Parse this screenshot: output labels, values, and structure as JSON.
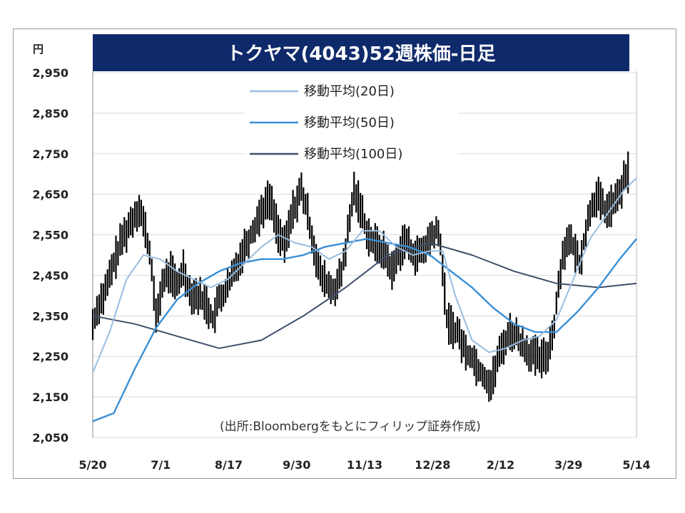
{
  "chart_data": {
    "type": "line",
    "title": "トクヤマ(4043)52週株価-日足",
    "unit_label": "円",
    "source": "(出所:Bloombergをもとにフィリップ証券作成)",
    "ylim": [
      2050,
      2950
    ],
    "y_ticks": [
      "2,950",
      "2,850",
      "2,750",
      "2,650",
      "2,550",
      "2,450",
      "2,350",
      "2,250",
      "2,150",
      "2,050"
    ],
    "y_tick_values": [
      2950,
      2850,
      2750,
      2650,
      2550,
      2450,
      2350,
      2250,
      2150,
      2050
    ],
    "x_tick_labels": [
      "5/20",
      "7/1",
      "8/17",
      "9/30",
      "11/13",
      "12/28",
      "2/12",
      "3/29",
      "5/14"
    ],
    "grid": true,
    "legend_position": "top-center",
    "colors": {
      "title_bar": "#0f2a6b",
      "price": "#000000",
      "ma20": "#9bbde0",
      "ma50": "#3a8fd6",
      "ma100": "#3f4f6b",
      "grid": "#d9d9d9"
    },
    "x_range": [
      0,
      258
    ],
    "price_range_points": [
      [
        0,
        2330
      ],
      [
        3,
        2380
      ],
      [
        6,
        2410
      ],
      [
        10,
        2480
      ],
      [
        14,
        2540
      ],
      [
        18,
        2580
      ],
      [
        22,
        2620
      ],
      [
        25,
        2560
      ],
      [
        28,
        2470
      ],
      [
        30,
        2340
      ],
      [
        33,
        2430
      ],
      [
        37,
        2460
      ],
      [
        40,
        2420
      ],
      [
        43,
        2470
      ],
      [
        46,
        2410
      ],
      [
        50,
        2400
      ],
      [
        54,
        2380
      ],
      [
        57,
        2340
      ],
      [
        60,
        2390
      ],
      [
        64,
        2420
      ],
      [
        68,
        2470
      ],
      [
        72,
        2520
      ],
      [
        76,
        2560
      ],
      [
        80,
        2610
      ],
      [
        84,
        2640
      ],
      [
        88,
        2560
      ],
      [
        91,
        2520
      ],
      [
        95,
        2610
      ],
      [
        99,
        2660
      ],
      [
        102,
        2600
      ],
      [
        105,
        2520
      ],
      [
        108,
        2450
      ],
      [
        111,
        2430
      ],
      [
        114,
        2410
      ],
      [
        118,
        2450
      ],
      [
        121,
        2550
      ],
      [
        124,
        2660
      ],
      [
        127,
        2620
      ],
      [
        130,
        2560
      ],
      [
        133,
        2530
      ],
      [
        136,
        2520
      ],
      [
        139,
        2500
      ],
      [
        142,
        2460
      ],
      [
        145,
        2500
      ],
      [
        148,
        2540
      ],
      [
        151,
        2510
      ],
      [
        154,
        2500
      ],
      [
        157,
        2510
      ],
      [
        160,
        2540
      ],
      [
        163,
        2560
      ],
      [
        165,
        2530
      ],
      [
        168,
        2340
      ],
      [
        171,
        2320
      ],
      [
        174,
        2300
      ],
      [
        177,
        2260
      ],
      [
        180,
        2250
      ],
      [
        183,
        2220
      ],
      [
        186,
        2200
      ],
      [
        189,
        2180
      ],
      [
        192,
        2240
      ],
      [
        195,
        2280
      ],
      [
        198,
        2310
      ],
      [
        201,
        2300
      ],
      [
        204,
        2280
      ],
      [
        207,
        2260
      ],
      [
        210,
        2250
      ],
      [
        213,
        2240
      ],
      [
        216,
        2260
      ],
      [
        219,
        2330
      ],
      [
        222,
        2470
      ],
      [
        225,
        2540
      ],
      [
        228,
        2520
      ],
      [
        231,
        2480
      ],
      [
        234,
        2560
      ],
      [
        237,
        2630
      ],
      [
        240,
        2640
      ],
      [
        243,
        2610
      ],
      [
        246,
        2620
      ],
      [
        249,
        2640
      ],
      [
        252,
        2680
      ],
      [
        255,
        2720
      ]
    ],
    "series": [
      {
        "name": "移動平均(20日)",
        "color": "#9bbde0"
      },
      {
        "name": "移動平均(50日)",
        "color": "#3a8fd6"
      },
      {
        "name": "移動平均(100日)",
        "color": "#3f4f6b"
      }
    ],
    "ma20_points": [
      [
        0,
        2210
      ],
      [
        8,
        2310
      ],
      [
        16,
        2440
      ],
      [
        24,
        2500
      ],
      [
        32,
        2490
      ],
      [
        40,
        2460
      ],
      [
        48,
        2440
      ],
      [
        56,
        2420
      ],
      [
        64,
        2440
      ],
      [
        72,
        2480
      ],
      [
        80,
        2520
      ],
      [
        88,
        2550
      ],
      [
        96,
        2530
      ],
      [
        104,
        2520
      ],
      [
        112,
        2490
      ],
      [
        120,
        2510
      ],
      [
        128,
        2560
      ],
      [
        136,
        2560
      ],
      [
        144,
        2520
      ],
      [
        152,
        2500
      ],
      [
        160,
        2510
      ],
      [
        166,
        2510
      ],
      [
        172,
        2400
      ],
      [
        180,
        2290
      ],
      [
        188,
        2260
      ],
      [
        196,
        2270
      ],
      [
        204,
        2290
      ],
      [
        212,
        2300
      ],
      [
        220,
        2340
      ],
      [
        228,
        2440
      ],
      [
        236,
        2540
      ],
      [
        244,
        2600
      ],
      [
        252,
        2660
      ],
      [
        258,
        2690
      ]
    ],
    "ma50_points": [
      [
        0,
        2090
      ],
      [
        10,
        2110
      ],
      [
        20,
        2220
      ],
      [
        30,
        2320
      ],
      [
        40,
        2390
      ],
      [
        50,
        2430
      ],
      [
        60,
        2460
      ],
      [
        70,
        2480
      ],
      [
        80,
        2490
      ],
      [
        90,
        2490
      ],
      [
        100,
        2500
      ],
      [
        110,
        2520
      ],
      [
        120,
        2530
      ],
      [
        130,
        2540
      ],
      [
        140,
        2530
      ],
      [
        150,
        2520
      ],
      [
        160,
        2500
      ],
      [
        170,
        2460
      ],
      [
        180,
        2420
      ],
      [
        190,
        2370
      ],
      [
        200,
        2330
      ],
      [
        210,
        2310
      ],
      [
        220,
        2310
      ],
      [
        230,
        2360
      ],
      [
        240,
        2420
      ],
      [
        250,
        2490
      ],
      [
        258,
        2540
      ]
    ],
    "ma100_points": [
      [
        0,
        2350
      ],
      [
        20,
        2330
      ],
      [
        40,
        2300
      ],
      [
        60,
        2270
      ],
      [
        80,
        2290
      ],
      [
        100,
        2350
      ],
      [
        120,
        2420
      ],
      [
        140,
        2500
      ],
      [
        160,
        2530
      ],
      [
        180,
        2500
      ],
      [
        200,
        2460
      ],
      [
        220,
        2430
      ],
      [
        240,
        2420
      ],
      [
        258,
        2430
      ]
    ]
  }
}
